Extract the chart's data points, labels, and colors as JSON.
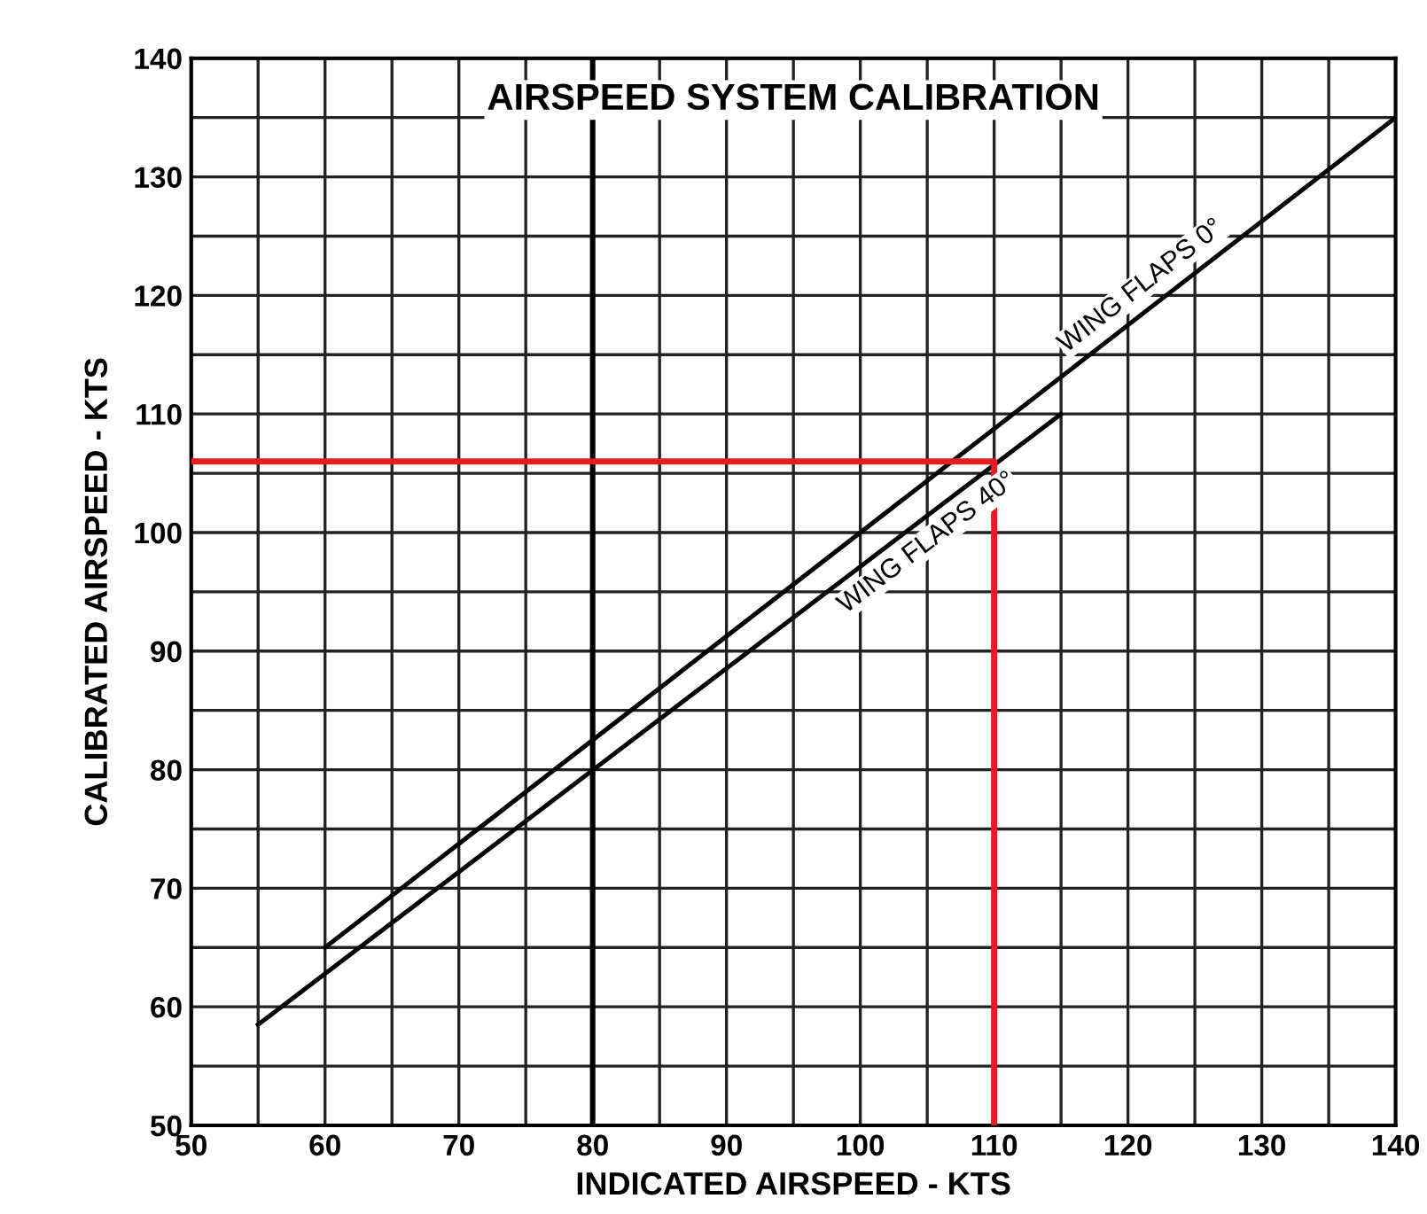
{
  "chart_data": {
    "type": "line",
    "title": "AIRSPEED SYSTEM CALIBRATION",
    "xlabel": "INDICATED AIRSPEED - KTS",
    "ylabel": "CALIBRATED AIRSPEED - KTS",
    "series": [
      {
        "x": [
          60,
          140
        ],
        "values": [
          65,
          135
        ],
        "color": "#000000"
      },
      {
        "x": [
          55,
          115
        ],
        "values": [
          58.5,
          110
        ],
        "color": "#000000"
      },
      {
        "x": [
          50,
          110,
          110
        ],
        "values": [
          106,
          106,
          50
        ],
        "color": "#e02020"
      }
    ],
    "annotations": [
      {
        "text": "WING FLAPS 0°",
        "x": 122,
        "y": 119.3
      },
      {
        "text": "WING FLAPS 40°",
        "x": 104,
        "y": 100.6
      }
    ],
    "ref_lines": [
      {
        "axis": "x",
        "value": 80,
        "label": null,
        "color": "#000000"
      }
    ],
    "xlim": [
      50,
      140
    ],
    "ylim": [
      50,
      140
    ],
    "xticks": [
      50,
      {
        "value": 55,
        "label": null
      },
      60,
      {
        "value": 65,
        "label": null
      },
      70,
      {
        "value": 75,
        "label": null
      },
      80,
      {
        "value": 85,
        "label": null
      },
      90,
      {
        "value": 95,
        "label": null
      },
      100,
      {
        "value": 105,
        "label": null
      },
      110,
      {
        "value": 115,
        "label": null
      },
      120,
      {
        "value": 125,
        "label": null
      },
      130,
      {
        "value": 135,
        "label": null
      },
      140
    ],
    "yticks": [
      50,
      {
        "value": 55,
        "label": null
      },
      60,
      {
        "value": 65,
        "label": null
      },
      70,
      {
        "value": 75,
        "label": null
      },
      80,
      {
        "value": 85,
        "label": null
      },
      90,
      {
        "value": 95,
        "label": null
      },
      100,
      {
        "value": 105,
        "label": null
      },
      110,
      {
        "value": 115,
        "label": null
      },
      120,
      {
        "value": 125,
        "label": null
      },
      130,
      {
        "value": 135,
        "label": null
      },
      140
    ],
    "grid": true,
    "marker": "none",
    "line_style": "solid"
  }
}
